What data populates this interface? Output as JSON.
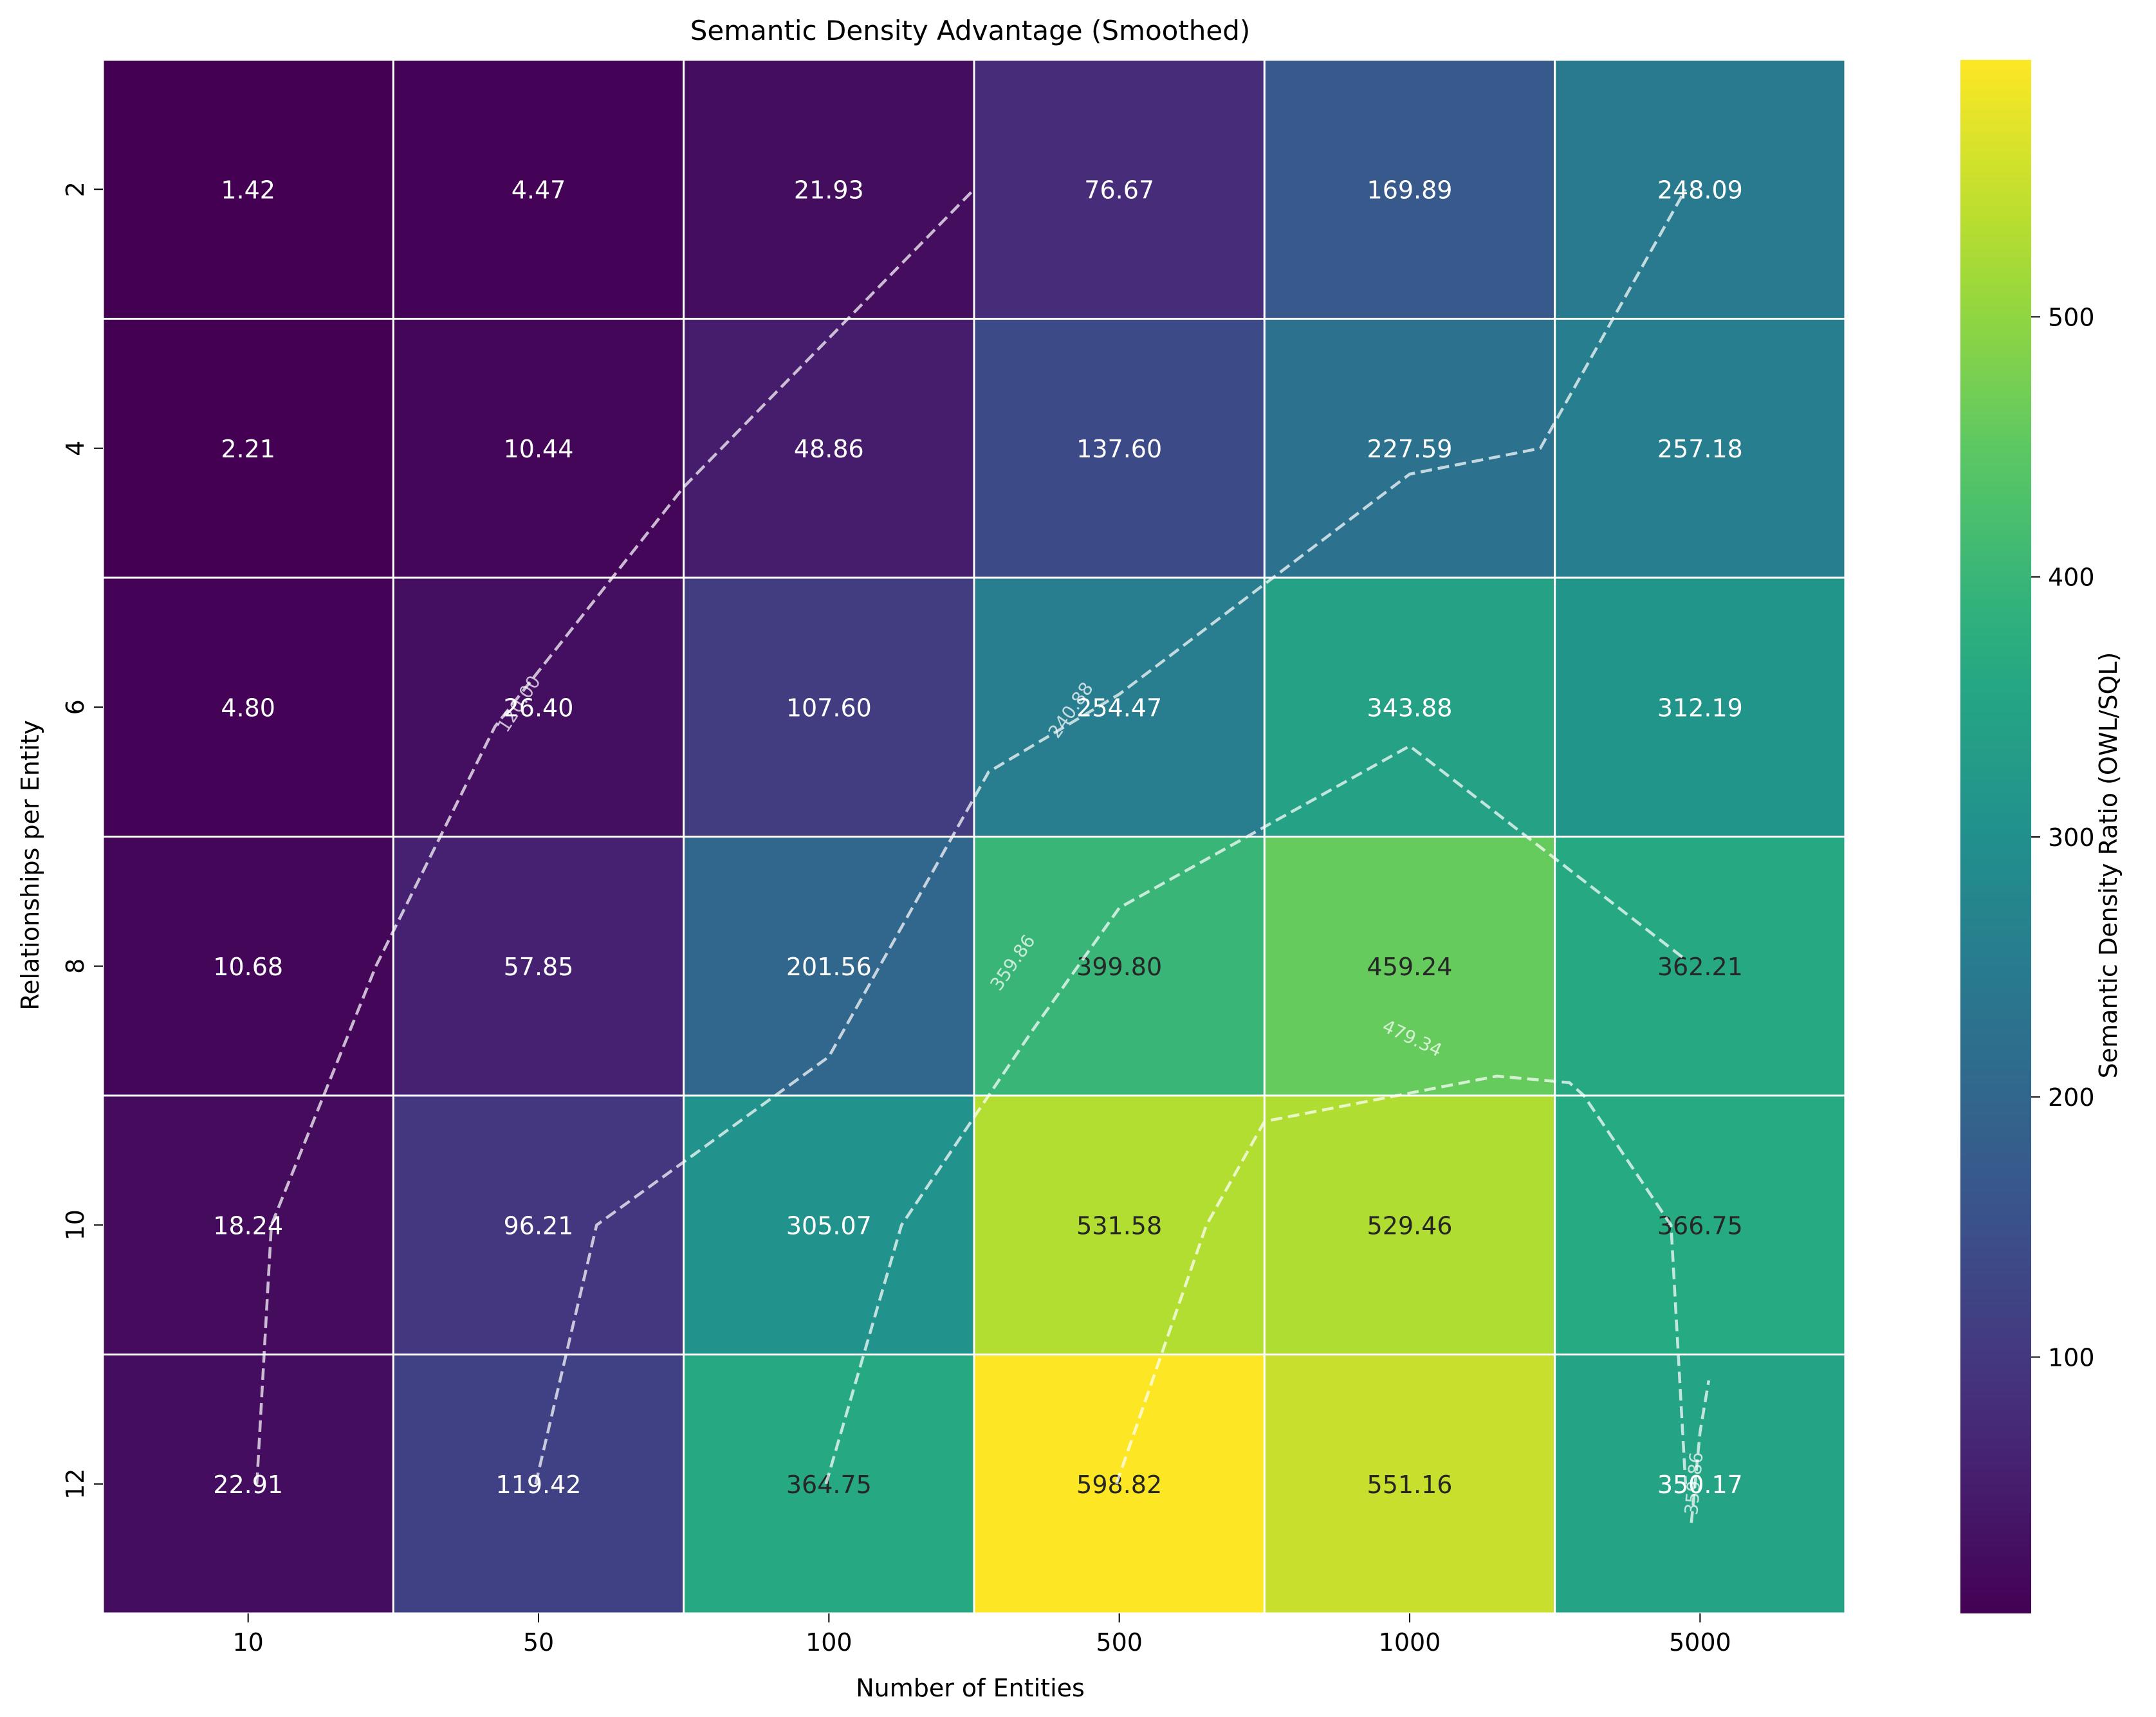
{
  "chart_data": {
    "type": "heatmap",
    "title": "Semantic Density Advantage (Smoothed)",
    "xlabel": "Number of Entities",
    "ylabel": "Relationships per Entity",
    "x_categories": [
      "10",
      "50",
      "100",
      "500",
      "1000",
      "5000"
    ],
    "y_categories": [
      "2",
      "4",
      "6",
      "8",
      "10",
      "12"
    ],
    "values": [
      [
        1.42,
        4.47,
        21.93,
        76.67,
        169.89,
        248.09
      ],
      [
        2.21,
        10.44,
        48.86,
        137.6,
        227.59,
        257.18
      ],
      [
        4.8,
        26.4,
        107.6,
        254.47,
        343.88,
        312.19
      ],
      [
        10.68,
        57.85,
        201.56,
        399.8,
        459.24,
        362.21
      ],
      [
        18.24,
        96.21,
        305.07,
        531.58,
        529.46,
        366.75
      ],
      [
        22.91,
        119.42,
        364.75,
        598.82,
        551.16,
        350.17
      ]
    ],
    "cell_labels": [
      [
        "1.42",
        "4.47",
        "21.93",
        "76.67",
        "169.89",
        "248.09"
      ],
      [
        "2.21",
        "10.44",
        "48.86",
        "137.60",
        "227.59",
        "257.18"
      ],
      [
        "4.80",
        "26.40",
        "107.60",
        "254.47",
        "343.88",
        "312.19"
      ],
      [
        "10.68",
        "57.85",
        "201.56",
        "399.80",
        "459.24",
        "362.21"
      ],
      [
        "18.24",
        "96.21",
        "305.07",
        "531.58",
        "529.46",
        "366.75"
      ],
      [
        "22.91",
        "119.42",
        "364.75",
        "598.82",
        "551.16",
        "350.17"
      ]
    ],
    "colormap": "viridis",
    "colorbar": {
      "label": "Semantic Density Ratio (OWL/SQL)",
      "range": [
        1.42,
        598.82
      ],
      "ticks": [
        100,
        200,
        300,
        400,
        500
      ],
      "tick_labels": [
        "100",
        "200",
        "300",
        "400",
        "500"
      ]
    },
    "contours": [
      {
        "level": 120.0,
        "label": "120.00",
        "style": "dashed",
        "points": [
          [
            1.03,
            12
          ],
          [
            1.08,
            10
          ],
          [
            1.44,
            8
          ],
          [
            1.85,
            6.15
          ],
          [
            2.5,
            4.3
          ],
          [
            3.5,
            2
          ]
        ]
      },
      {
        "level": 240.88,
        "label": "240.88",
        "style": "dashed",
        "points": [
          [
            1.99,
            12
          ],
          [
            2.2,
            10
          ],
          [
            3.0,
            8.7
          ],
          [
            3.55,
            6.5
          ],
          [
            4.0,
            5.9
          ],
          [
            5.0,
            4.2
          ],
          [
            5.45,
            4.0
          ],
          [
            5.95,
            2
          ]
        ]
      },
      {
        "level": 359.86,
        "label": "359.86",
        "style": "dashed",
        "points": [
          [
            2.99,
            12
          ],
          [
            3.25,
            10
          ],
          [
            3.7,
            8.5
          ],
          [
            4.0,
            7.55
          ],
          [
            5.0,
            6.3
          ],
          [
            5.0,
            6.3
          ],
          [
            5.95,
            7.95
          ]
        ]
      },
      {
        "level": 359.86,
        "label": "359.86",
        "style": "dashed",
        "points": [
          [
            5.97,
            12.3
          ],
          [
            6.0,
            11.6
          ],
          [
            6.03,
            11.2
          ]
        ]
      },
      {
        "level": 479.34,
        "label": "479.34",
        "style": "dashed",
        "points": [
          [
            3.99,
            12
          ],
          [
            4.3,
            10
          ],
          [
            4.5,
            9.2
          ],
          [
            5.3,
            8.85
          ],
          [
            5.55,
            8.9
          ],
          [
            5.6,
            9.0
          ],
          [
            5.9,
            10
          ],
          [
            5.95,
            12
          ]
        ]
      }
    ],
    "grid": true
  }
}
